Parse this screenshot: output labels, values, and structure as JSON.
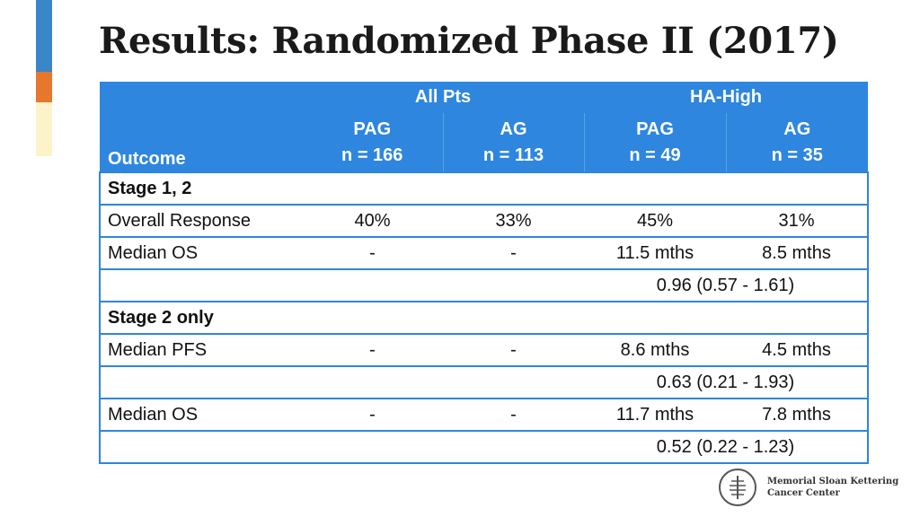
{
  "slide": {
    "title": "Results: Randomized Phase II (2017)"
  },
  "table": {
    "group_headers": [
      "All Pts",
      "HA-High"
    ],
    "outcome_header": "Outcome",
    "arm_headers": [
      {
        "arm": "PAG",
        "n": "n = 166"
      },
      {
        "arm": "AG",
        "n": "n = 113"
      },
      {
        "arm": "PAG",
        "n": "n = 49"
      },
      {
        "arm": "AG",
        "n": "n = 35"
      }
    ],
    "rows": [
      {
        "label": "Stage 1, 2"
      },
      {
        "label": "Overall Response",
        "values": [
          "40%",
          "33%",
          "45%",
          "31%"
        ]
      },
      {
        "label": "Median OS",
        "values": [
          "-",
          "-",
          "11.5 mths",
          "8.5 mths"
        ]
      },
      {
        "hr": "0.96 (0.57 - 1.61)"
      },
      {
        "label": "Stage 2 only"
      },
      {
        "label": "Median PFS",
        "values": [
          "-",
          "-",
          "8.6 mths",
          "4.5 mths"
        ]
      },
      {
        "hr": "0.63 (0.21 - 1.93)"
      },
      {
        "label": "Median OS",
        "values": [
          "-",
          "-",
          "11.7 mths",
          "7.8 mths"
        ]
      },
      {
        "hr": "0.52 (0.22 - 1.23)"
      }
    ]
  },
  "logo": {
    "line1": "Memorial Sloan Kettering",
    "line2": "Cancer Center",
    "icon": "msk-logo-icon"
  },
  "colors": {
    "header_blue": "#2e86de",
    "accent_blue": "#3a86c8",
    "accent_orange": "#e8772e",
    "accent_cream": "#fdf3c8"
  }
}
